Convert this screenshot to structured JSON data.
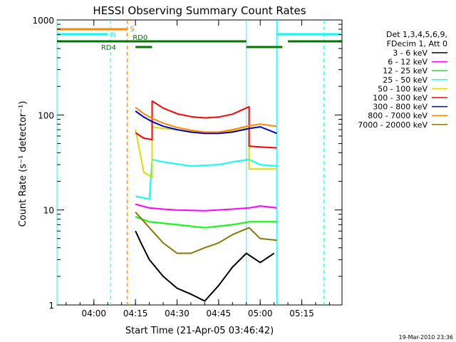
{
  "chart_data": {
    "type": "line",
    "title": "HESSI Observing Summary Count Rates",
    "xlabel": "Start Time (21-Apr-05 03:46:42)",
    "ylabel": "Count Rate (s⁻¹ detector⁻¹)",
    "y_scale": "log",
    "ylim": [
      1,
      1000
    ],
    "xlim": [
      "03:46:42",
      "05:29:30"
    ],
    "grid": false,
    "legend_position": "right",
    "x_ticks": [
      "04:00",
      "04:15",
      "04:30",
      "04:45",
      "05:00",
      "05:15"
    ],
    "y_ticks": [
      "1",
      "10",
      "100",
      "1000"
    ],
    "legend_header": [
      "Det 1,3,4,5,6,9,",
      "FDecim 1, Att 0"
    ],
    "series": [
      {
        "name": "3 - 6 keV",
        "color": "#000000",
        "x": [
          "04:15",
          "04:17",
          "04:20",
          "04:25",
          "04:30",
          "04:35",
          "04:40",
          "04:45",
          "04:50",
          "04:55",
          "05:00",
          "05:05"
        ],
        "y": [
          6,
          4.5,
          3,
          2,
          1.5,
          1.3,
          1.1,
          1.6,
          2.5,
          3.5,
          2.8,
          3.5
        ]
      },
      {
        "name": "6 - 12 keV",
        "color": "#ff00ff",
        "x": [
          "04:15",
          "04:20",
          "04:25",
          "04:30",
          "04:40",
          "04:50",
          "04:56",
          "05:00",
          "05:06"
        ],
        "y": [
          11.5,
          10.5,
          10.2,
          10,
          9.8,
          10.2,
          10.5,
          11,
          10.5
        ]
      },
      {
        "name": "12 - 25 keV",
        "color": "#00ff00",
        "x": [
          "04:15",
          "04:20",
          "04:30",
          "04:40",
          "04:50",
          "04:56",
          "05:00",
          "05:06"
        ],
        "y": [
          8.5,
          7.5,
          7,
          6.5,
          7,
          7.5,
          7.5,
          7.5
        ]
      },
      {
        "name": "25 - 50 keV",
        "color": "#00ffff",
        "x": [
          "04:15",
          "04:20",
          "04:21",
          "04:25",
          "04:35",
          "04:45",
          "04:50",
          "04:56",
          "05:00",
          "05:06"
        ],
        "y": [
          14,
          13,
          34,
          32,
          29,
          30,
          32,
          34,
          30,
          29
        ]
      },
      {
        "name": "50 - 100 keV",
        "color": "#dddd00",
        "x": [
          "04:15",
          "04:18",
          "04:21",
          "04:21",
          "04:25",
          "04:30",
          "04:35",
          "04:40",
          "04:45",
          "04:50",
          "04:56",
          "04:56",
          "05:00",
          "05:06"
        ],
        "y": [
          70,
          25,
          22,
          75,
          72,
          70,
          67,
          65,
          66,
          68,
          72,
          27,
          27,
          27
        ]
      },
      {
        "name": "100 - 300 keV",
        "color": "#ff0000",
        "x": [
          "04:15",
          "04:18",
          "04:21",
          "04:21",
          "04:25",
          "04:30",
          "04:35",
          "04:40",
          "04:45",
          "04:50",
          "04:56",
          "04:56",
          "05:00",
          "05:06"
        ],
        "y": [
          65,
          57,
          55,
          140,
          118,
          103,
          96,
          93,
          95,
          102,
          122,
          47,
          46,
          45
        ]
      },
      {
        "name": "300 - 800 keV",
        "color": "#0000cc",
        "x": [
          "04:15",
          "04:18",
          "04:21",
          "04:25",
          "04:30",
          "04:35",
          "04:40",
          "04:45",
          "04:50",
          "04:56",
          "05:00",
          "05:06"
        ],
        "y": [
          110,
          95,
          85,
          76,
          70,
          66,
          64,
          64,
          66,
          72,
          75,
          64
        ]
      },
      {
        "name": "800 - 7000 keV",
        "color": "#ff8800",
        "x": [
          "04:15",
          "04:18",
          "04:21",
          "04:25",
          "04:30",
          "04:35",
          "04:40",
          "04:45",
          "04:50",
          "04:56",
          "05:00",
          "05:06"
        ],
        "y": [
          120,
          103,
          92,
          82,
          74,
          69,
          66,
          66,
          70,
          77,
          80,
          76
        ]
      },
      {
        "name": "7000 - 20000 keV",
        "color": "#887700",
        "x": [
          "04:15",
          "04:20",
          "04:25",
          "04:30",
          "04:35",
          "04:40",
          "04:45",
          "04:50",
          "04:56",
          "05:00",
          "05:06"
        ],
        "y": [
          9.5,
          6.5,
          4.5,
          3.5,
          3.5,
          4,
          4.5,
          5.5,
          6.5,
          5,
          4.8
        ]
      }
    ],
    "flag_bars": [
      {
        "label": "S",
        "color": "#ff8800",
        "segments": [
          [
            "03:46:42",
            "04:12"
          ]
        ]
      },
      {
        "label": "N",
        "color": "#00ffff",
        "segments": [
          [
            "03:46:42",
            "04:05"
          ],
          [
            "05:06",
            "05:29:30"
          ]
        ]
      },
      {
        "label": "RD0",
        "color": "#007700",
        "segments": [
          [
            "03:46:42",
            "04:55"
          ],
          [
            "05:10",
            "05:29:30"
          ]
        ]
      },
      {
        "label": "RD4",
        "color": "#007700",
        "segments": [
          [
            "04:15",
            "04:21"
          ],
          [
            "04:55",
            "05:08"
          ]
        ]
      }
    ],
    "vertical_markers": [
      {
        "time": "03:46:42",
        "color": "#00ffff",
        "style": "solid"
      },
      {
        "time": "04:06",
        "color": "#00ffff",
        "style": "dashed"
      },
      {
        "time": "04:12",
        "color": "#ff8800",
        "style": "dashed"
      },
      {
        "time": "04:55",
        "color": "#00ffff",
        "style": "solid"
      },
      {
        "time": "05:06",
        "color": "#00ffff",
        "style": "solid"
      },
      {
        "time": "05:23",
        "color": "#00ffff",
        "style": "dashed"
      }
    ],
    "timestamp": "19-Mar-2010 23:36"
  }
}
